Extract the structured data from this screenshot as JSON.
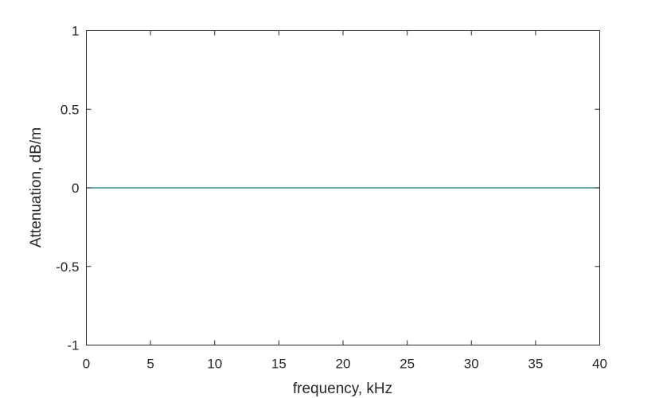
{
  "chart_data": {
    "type": "line",
    "title": "",
    "xlabel": "frequency, kHz",
    "ylabel": "Attenuation, dB/m",
    "xlim": [
      0,
      40
    ],
    "ylim": [
      -1,
      1
    ],
    "xticks": [
      0,
      5,
      10,
      15,
      20,
      25,
      30,
      35,
      40
    ],
    "xtick_labels": [
      "0",
      "5",
      "10",
      "15",
      "20",
      "25",
      "30",
      "35",
      "40"
    ],
    "yticks": [
      -1,
      -0.5,
      0,
      0.5,
      1
    ],
    "ytick_labels": [
      "-1",
      "-0.5",
      "0",
      "0.5",
      "1"
    ],
    "grid": false,
    "legend": "none",
    "series": [
      {
        "color": "#1a7a72",
        "x": [
          0,
          40
        ],
        "y": [
          0,
          0
        ]
      }
    ]
  },
  "colors": {
    "axes": "#262626",
    "background": "#ffffff"
  }
}
